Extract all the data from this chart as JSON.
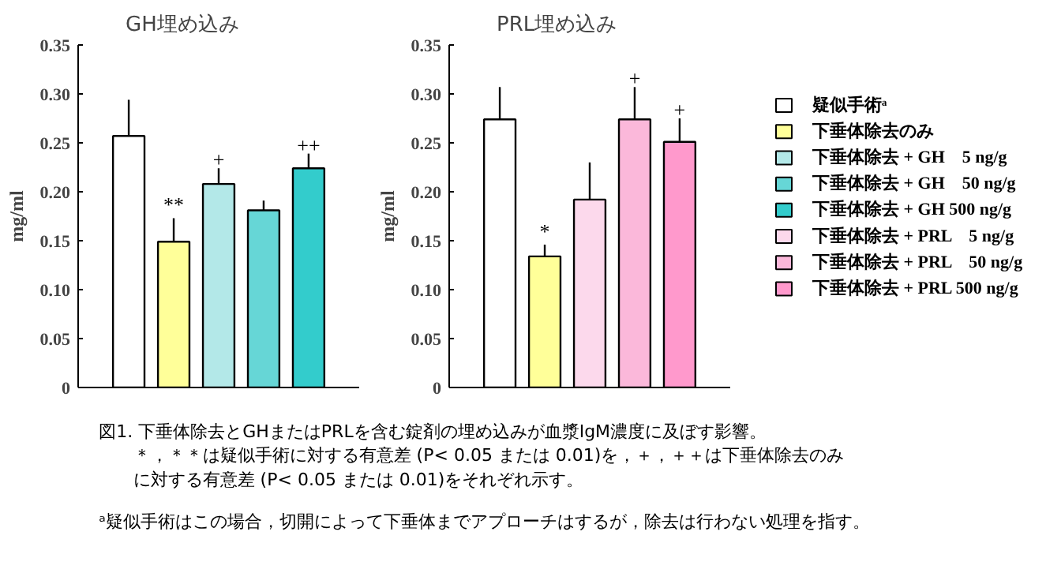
{
  "chart_data": [
    {
      "type": "bar",
      "title": "GH埋め込み",
      "ylabel": "mg/ml",
      "categories": [
        null
      ],
      "ylim": [
        0,
        0.35
      ],
      "yticks": [
        {
          "value": 0,
          "label": "0"
        },
        0.05,
        {
          "value": 0.1,
          "label": "0.10"
        },
        0.15,
        {
          "value": 0.2,
          "label": "0.20"
        },
        0.25,
        {
          "value": 0.3,
          "label": "0.30"
        },
        0.35
      ],
      "grid": false,
      "legend": "right",
      "annotations": [
        "図1. 下垂体除去とGHまたはPRLを含む錠剤の埋め込みが血漿IgM濃度に及ぼす影響。",
        "＊，＊＊は疑似手術に対する有意差 (P< 0.05 または 0.01)を，＋，＋＋は下垂体除去のみ",
        "に対する有意差 (P< 0.05 または 0.01)をそれぞれ示す。",
        "ᵃ疑似手術はこの場合，切開によって下垂体までアプローチはするが，除去は行わない処理を指す。"
      ],
      "series": [
        {
          "name": "疑似手術ᵃ",
          "color": "#ffffff",
          "values": [
            0.257
          ],
          "errors": [
            [
              0.257,
              0.294
            ]
          ]
        },
        {
          "name": "下垂体除去のみ",
          "color": "#ffff99",
          "values": [
            0.149
          ],
          "errors": [
            [
              0.149,
              0.173
            ]
          ],
          "value_labels": [
            "**"
          ]
        },
        {
          "name": "下垂体除去 + GH　5 ng/g",
          "color": "#b3e8e8",
          "values": [
            0.208
          ],
          "errors": [
            [
              0.208,
              0.224
            ]
          ],
          "value_labels": [
            "+"
          ]
        },
        {
          "name": "下垂体除去 + GH　50 ng/g",
          "color": "#66d6d6",
          "values": [
            0.181
          ],
          "errors": [
            [
              0.181,
              0.191
            ]
          ]
        },
        {
          "name": "下垂体除去 + GH 500 ng/g",
          "color": "#33cccc",
          "values": [
            0.224
          ],
          "errors": [
            [
              0.224,
              0.239
            ]
          ],
          "value_labels": [
            "++"
          ]
        }
      ]
    },
    {
      "type": "bar",
      "title": "PRL埋め込み",
      "ylabel": "mg/ml",
      "categories": [
        null
      ],
      "ylim": [
        0,
        0.35
      ],
      "yticks": [
        {
          "value": 0,
          "label": "0"
        },
        0.05,
        {
          "value": 0.1,
          "label": "0.10"
        },
        0.15,
        {
          "value": 0.2,
          "label": "0.20"
        },
        0.25,
        {
          "value": 0.3,
          "label": "0.30"
        },
        0.35
      ],
      "grid": false,
      "legend": "right",
      "series": [
        {
          "color": "#ffffff",
          "values": [
            0.274
          ],
          "errors": [
            [
              0.274,
              0.307
            ]
          ]
        },
        {
          "color": "#ffff99",
          "values": [
            0.134
          ],
          "errors": [
            [
              0.134,
              0.146
            ]
          ],
          "value_labels": [
            "*"
          ]
        },
        {
          "name": "下垂体除去 + PRL　5 ng/g",
          "color": "#fcd9ec",
          "values": [
            0.192
          ],
          "errors": [
            [
              0.192,
              0.23
            ]
          ]
        },
        {
          "name": "下垂体除去 + PRL　50 ng/g",
          "color": "#fbb8da",
          "values": [
            0.274
          ],
          "errors": [
            [
              0.274,
              0.307
            ]
          ],
          "value_labels": [
            "+"
          ]
        },
        {
          "name": "下垂体除去 + PRL 500 ng/g",
          "color": "#ff99cc",
          "values": [
            0.251
          ],
          "errors": [
            [
              0.251,
              0.275
            ]
          ],
          "value_labels": [
            "+"
          ]
        }
      ]
    }
  ]
}
